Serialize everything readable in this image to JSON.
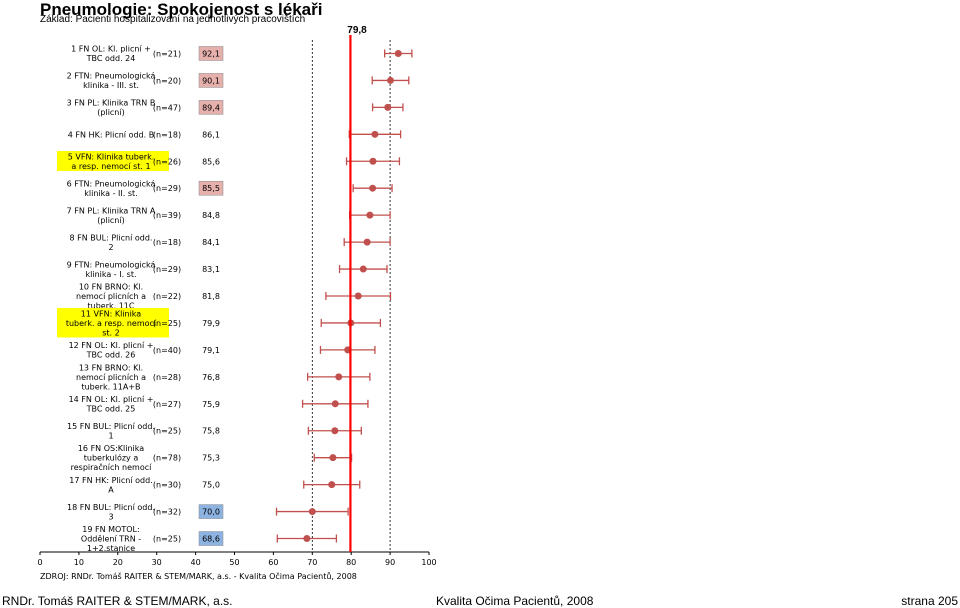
{
  "title": "Pneumologie: Spokojenost s lékaři",
  "subtitle": "Základ: Pacienti hospitalizovaní na jednotlivých pracovištích",
  "source": "ZDROJ: RNDr. Tomáš RAITER & STEM/MARK, a.s. - Kvalita Očima Pacientů, 2008",
  "footer": {
    "left": "RNDr. Tomáš RAITER & STEM/MARK, a.s.",
    "middle": "Kvalita Očima Pacientů, 2008",
    "right": "strana 205"
  },
  "colors": {
    "marker": "#c0504d",
    "average_line": "#ff0000",
    "grid": "#000000",
    "highlight_yellow": "#ffff00",
    "above_avg_box": "#e6b0ad",
    "below_avg_box": "#8db3e2"
  },
  "chart_data": {
    "type": "scatter",
    "orientation": "horizontal",
    "xlim": [
      0,
      100
    ],
    "xticks": [
      "0",
      "10",
      "20",
      "30",
      "40",
      "50",
      "60",
      "70",
      "80",
      "90",
      "100"
    ],
    "average": 79.8,
    "average_label": "79,8",
    "grid": "vertical dashed lines at 70 and 90",
    "rows": [
      {
        "label": [
          "1 FN OL: Kl. plicní +",
          "TBC odd. 24"
        ],
        "n": "(n=21)",
        "value": 92.1,
        "value_label": "92,1",
        "low": 88.6,
        "high": 95.6,
        "box": "above",
        "highlight": false
      },
      {
        "label": [
          "2 FTN: Pneumologická",
          "klinika - III. st."
        ],
        "n": "(n=20)",
        "value": 90.1,
        "value_label": "90,1",
        "low": 85.4,
        "high": 94.8,
        "box": "above",
        "highlight": false
      },
      {
        "label": [
          "3 FN PL: Klinika TRN B",
          "(plicní)"
        ],
        "n": "(n=47)",
        "value": 89.4,
        "value_label": "89,4",
        "low": 85.5,
        "high": 93.3,
        "box": "above",
        "highlight": false
      },
      {
        "label": [
          "4 FN HK: Plicní odd. B"
        ],
        "n": "(n=18)",
        "value": 86.1,
        "value_label": "86,1",
        "low": 79.5,
        "high": 92.7,
        "box": "none",
        "highlight": false
      },
      {
        "label": [
          "5 VFN: Klinika tuberk.",
          "a resp. nemocí st. 1"
        ],
        "n": "(n=26)",
        "value": 85.6,
        "value_label": "85,6",
        "low": 78.8,
        "high": 92.4,
        "box": "none",
        "highlight": true
      },
      {
        "label": [
          "6 FTN: Pneumologická",
          "klinika - II. st."
        ],
        "n": "(n=29)",
        "value": 85.5,
        "value_label": "85,5",
        "low": 80.5,
        "high": 90.5,
        "box": "above",
        "highlight": false
      },
      {
        "label": [
          "7 FN PL: Klinika TRN A",
          "(plicní)"
        ],
        "n": "(n=39)",
        "value": 84.8,
        "value_label": "84,8",
        "low": 79.6,
        "high": 90.0,
        "box": "none",
        "highlight": false
      },
      {
        "label": [
          "8 FN BUL: Plicní odd.",
          "2"
        ],
        "n": "(n=18)",
        "value": 84.1,
        "value_label": "84,1",
        "low": 78.2,
        "high": 90.0,
        "box": "none",
        "highlight": false
      },
      {
        "label": [
          "9 FTN: Pneumologická",
          "klinika - I. st."
        ],
        "n": "(n=29)",
        "value": 83.1,
        "value_label": "83,1",
        "low": 77.0,
        "high": 89.2,
        "box": "none",
        "highlight": false
      },
      {
        "label": [
          "10 FN BRNO: Kl.",
          "nemocí plicních a",
          "tuberk. 11C"
        ],
        "n": "(n=22)",
        "value": 81.8,
        "value_label": "81,8",
        "low": 73.5,
        "high": 90.1,
        "box": "none",
        "highlight": false
      },
      {
        "label": [
          "11 VFN: Klinika",
          "tuberk. a resp. nemocí",
          "st. 2"
        ],
        "n": "(n=25)",
        "value": 79.9,
        "value_label": "79,9",
        "low": 72.3,
        "high": 87.5,
        "box": "none",
        "highlight": true
      },
      {
        "label": [
          "12 FN OL: Kl. plicní +",
          "TBC odd. 26"
        ],
        "n": "(n=40)",
        "value": 79.1,
        "value_label": "79,1",
        "low": 72.1,
        "high": 86.1,
        "box": "none",
        "highlight": false
      },
      {
        "label": [
          "13 FN BRNO: Kl.",
          "nemocí plicních a",
          "tuberk. 11A+B"
        ],
        "n": "(n=28)",
        "value": 76.8,
        "value_label": "76,8",
        "low": 68.8,
        "high": 84.8,
        "box": "none",
        "highlight": false
      },
      {
        "label": [
          "14 FN OL: Kl. plicní +",
          "TBC odd. 25"
        ],
        "n": "(n=27)",
        "value": 75.9,
        "value_label": "75,9",
        "low": 67.5,
        "high": 84.3,
        "box": "none",
        "highlight": false
      },
      {
        "label": [
          "15 FN BUL: Plicní odd.",
          "1"
        ],
        "n": "(n=25)",
        "value": 75.8,
        "value_label": "75,8",
        "low": 69.0,
        "high": 82.6,
        "box": "none",
        "highlight": false
      },
      {
        "label": [
          "16 FN OS:Klinika",
          "tuberkulózy a",
          "respiračních nemocí"
        ],
        "n": "(n=78)",
        "value": 75.3,
        "value_label": "75,3",
        "low": 70.5,
        "high": 80.1,
        "box": "none",
        "highlight": false
      },
      {
        "label": [
          "17 FN HK: Plicní odd.",
          "A"
        ],
        "n": "(n=30)",
        "value": 75.0,
        "value_label": "75,0",
        "low": 67.8,
        "high": 82.2,
        "box": "none",
        "highlight": false
      },
      {
        "label": [
          "18 FN BUL: Plicní odd.",
          "3"
        ],
        "n": "(n=32)",
        "value": 70.0,
        "value_label": "70,0",
        "low": 60.8,
        "high": 79.2,
        "box": "below",
        "highlight": false
      },
      {
        "label": [
          "19 FN MOTOL:",
          "Oddělení TRN -",
          "1+2.stanice"
        ],
        "n": "(n=25)",
        "value": 68.6,
        "value_label": "68,6",
        "low": 61.0,
        "high": 76.2,
        "box": "below",
        "highlight": false
      }
    ]
  }
}
